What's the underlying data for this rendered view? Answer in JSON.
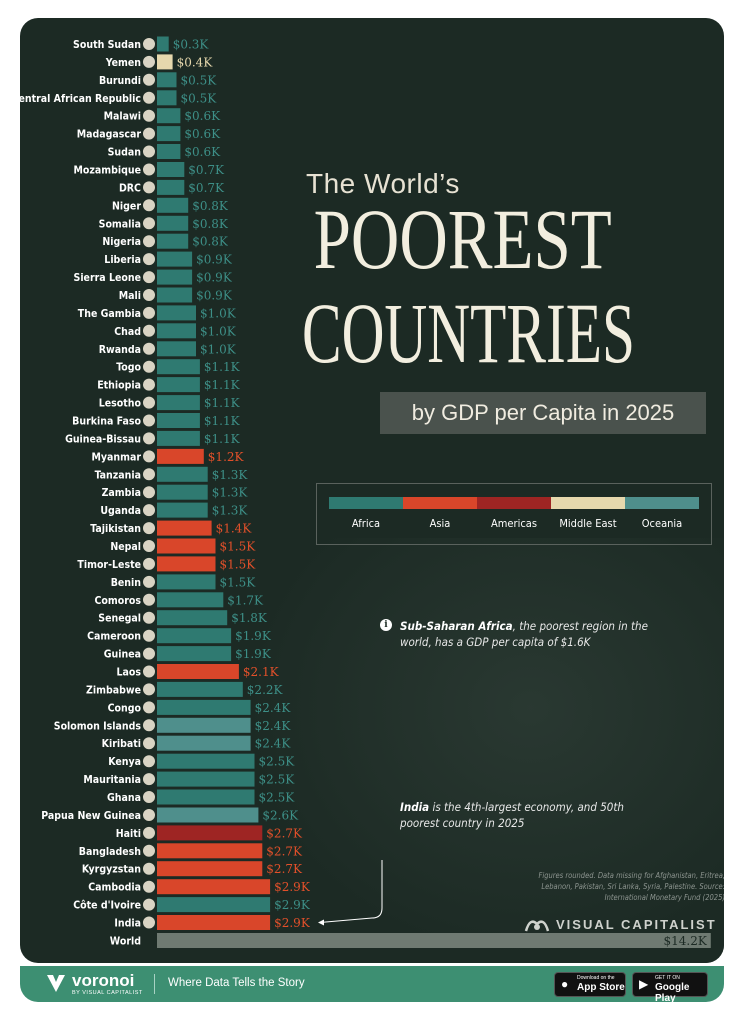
{
  "title": {
    "subtitle_top": "The World’s",
    "main_line1": "POOREST",
    "main_line2": "COUNTRIES",
    "box": "by GDP per Capita in 2025"
  },
  "legend": [
    {
      "label": "Africa",
      "color": "#2f7a71"
    },
    {
      "label": "Asia",
      "color": "#d9462a"
    },
    {
      "label": "Americas",
      "color": "#9e2523"
    },
    {
      "label": "Middle East",
      "color": "#e6d8ad"
    },
    {
      "label": "Oceania",
      "color": "#4f8f8c"
    }
  ],
  "notes": {
    "africa_bold": "Sub-Saharan Africa",
    "africa_rest": ", the poorest region in the world, has a GDP per capita of $1.6K",
    "india_bold": "India",
    "india_rest": " is the 4th-largest economy, and 50th poorest country in 2025"
  },
  "footnote": "Figures rounded. Data missing for Afghanistan, Eritrea, Lebanon, Pakistan, Sri Lanka, Syria, Palestine. Source: International Monetary Fund (2025)",
  "brand": {
    "visual_capitalist": "VISUAL CAPITALIST"
  },
  "bottom_bar": {
    "logo_name": "voronoi",
    "logo_by": "BY VISUAL CAPITALIST",
    "tagline": "Where Data Tells the Story",
    "app_store_small": "Download on the",
    "app_store_big": "App Store",
    "google_small": "GET IT ON",
    "google_big": "Google Play"
  },
  "chart_data": {
    "type": "bar",
    "orientation": "horizontal",
    "unit": "GDP per capita (thousand USD)",
    "region_colors": {
      "Africa": "#2f7a71",
      "Asia": "#d9462a",
      "Americas": "#9e2523",
      "Middle East": "#e6d8ad",
      "Oceania": "#4f8f8c",
      "World": "#6f7a72"
    },
    "bars": [
      {
        "country": "South Sudan",
        "value": 0.3,
        "label": "$0.3K",
        "region": "Africa"
      },
      {
        "country": "Yemen",
        "value": 0.4,
        "label": "$0.4K",
        "region": "Middle East"
      },
      {
        "country": "Burundi",
        "value": 0.5,
        "label": "$0.5K",
        "region": "Africa"
      },
      {
        "country": "Central African Republic",
        "value": 0.5,
        "label": "$0.5K",
        "region": "Africa"
      },
      {
        "country": "Malawi",
        "value": 0.6,
        "label": "$0.6K",
        "region": "Africa"
      },
      {
        "country": "Madagascar",
        "value": 0.6,
        "label": "$0.6K",
        "region": "Africa"
      },
      {
        "country": "Sudan",
        "value": 0.6,
        "label": "$0.6K",
        "region": "Africa"
      },
      {
        "country": "Mozambique",
        "value": 0.7,
        "label": "$0.7K",
        "region": "Africa"
      },
      {
        "country": "DRC",
        "value": 0.7,
        "label": "$0.7K",
        "region": "Africa"
      },
      {
        "country": "Niger",
        "value": 0.8,
        "label": "$0.8K",
        "region": "Africa"
      },
      {
        "country": "Somalia",
        "value": 0.8,
        "label": "$0.8K",
        "region": "Africa"
      },
      {
        "country": "Nigeria",
        "value": 0.8,
        "label": "$0.8K",
        "region": "Africa"
      },
      {
        "country": "Liberia",
        "value": 0.9,
        "label": "$0.9K",
        "region": "Africa"
      },
      {
        "country": "Sierra Leone",
        "value": 0.9,
        "label": "$0.9K",
        "region": "Africa"
      },
      {
        "country": "Mali",
        "value": 0.9,
        "label": "$0.9K",
        "region": "Africa"
      },
      {
        "country": "The Gambia",
        "value": 1.0,
        "label": "$1.0K",
        "region": "Africa"
      },
      {
        "country": "Chad",
        "value": 1.0,
        "label": "$1.0K",
        "region": "Africa"
      },
      {
        "country": "Rwanda",
        "value": 1.0,
        "label": "$1.0K",
        "region": "Africa"
      },
      {
        "country": "Togo",
        "value": 1.1,
        "label": "$1.1K",
        "region": "Africa"
      },
      {
        "country": "Ethiopia",
        "value": 1.1,
        "label": "$1.1K",
        "region": "Africa"
      },
      {
        "country": "Lesotho",
        "value": 1.1,
        "label": "$1.1K",
        "region": "Africa"
      },
      {
        "country": "Burkina Faso",
        "value": 1.1,
        "label": "$1.1K",
        "region": "Africa"
      },
      {
        "country": "Guinea-Bissau",
        "value": 1.1,
        "label": "$1.1K",
        "region": "Africa"
      },
      {
        "country": "Myanmar",
        "value": 1.2,
        "label": "$1.2K",
        "region": "Asia"
      },
      {
        "country": "Tanzania",
        "value": 1.3,
        "label": "$1.3K",
        "region": "Africa"
      },
      {
        "country": "Zambia",
        "value": 1.3,
        "label": "$1.3K",
        "region": "Africa"
      },
      {
        "country": "Uganda",
        "value": 1.3,
        "label": "$1.3K",
        "region": "Africa"
      },
      {
        "country": "Tajikistan",
        "value": 1.4,
        "label": "$1.4K",
        "region": "Asia"
      },
      {
        "country": "Nepal",
        "value": 1.5,
        "label": "$1.5K",
        "region": "Asia"
      },
      {
        "country": "Timor-Leste",
        "value": 1.5,
        "label": "$1.5K",
        "region": "Asia"
      },
      {
        "country": "Benin",
        "value": 1.5,
        "label": "$1.5K",
        "region": "Africa"
      },
      {
        "country": "Comoros",
        "value": 1.7,
        "label": "$1.7K",
        "region": "Africa"
      },
      {
        "country": "Senegal",
        "value": 1.8,
        "label": "$1.8K",
        "region": "Africa"
      },
      {
        "country": "Cameroon",
        "value": 1.9,
        "label": "$1.9K",
        "region": "Africa"
      },
      {
        "country": "Guinea",
        "value": 1.9,
        "label": "$1.9K",
        "region": "Africa"
      },
      {
        "country": "Laos",
        "value": 2.1,
        "label": "$2.1K",
        "region": "Asia"
      },
      {
        "country": "Zimbabwe",
        "value": 2.2,
        "label": "$2.2K",
        "region": "Africa"
      },
      {
        "country": "Congo",
        "value": 2.4,
        "label": "$2.4K",
        "region": "Africa"
      },
      {
        "country": "Solomon Islands",
        "value": 2.4,
        "label": "$2.4K",
        "region": "Oceania"
      },
      {
        "country": "Kiribati",
        "value": 2.4,
        "label": "$2.4K",
        "region": "Oceania"
      },
      {
        "country": "Kenya",
        "value": 2.5,
        "label": "$2.5K",
        "region": "Africa"
      },
      {
        "country": "Mauritania",
        "value": 2.5,
        "label": "$2.5K",
        "region": "Africa"
      },
      {
        "country": "Ghana",
        "value": 2.5,
        "label": "$2.5K",
        "region": "Africa"
      },
      {
        "country": "Papua New Guinea",
        "value": 2.6,
        "label": "$2.6K",
        "region": "Oceania"
      },
      {
        "country": "Haiti",
        "value": 2.7,
        "label": "$2.7K",
        "region": "Americas"
      },
      {
        "country": "Bangladesh",
        "value": 2.7,
        "label": "$2.7K",
        "region": "Asia"
      },
      {
        "country": "Kyrgyzstan",
        "value": 2.7,
        "label": "$2.7K",
        "region": "Asia"
      },
      {
        "country": "Cambodia",
        "value": 2.9,
        "label": "$2.9K",
        "region": "Asia"
      },
      {
        "country": "Côte d'Ivoire",
        "value": 2.9,
        "label": "$2.9K",
        "region": "Africa"
      },
      {
        "country": "India",
        "value": 2.9,
        "label": "$2.9K",
        "region": "Asia"
      },
      {
        "country": "World",
        "value": 14.2,
        "label": "$14.2K",
        "region": "World"
      }
    ]
  }
}
